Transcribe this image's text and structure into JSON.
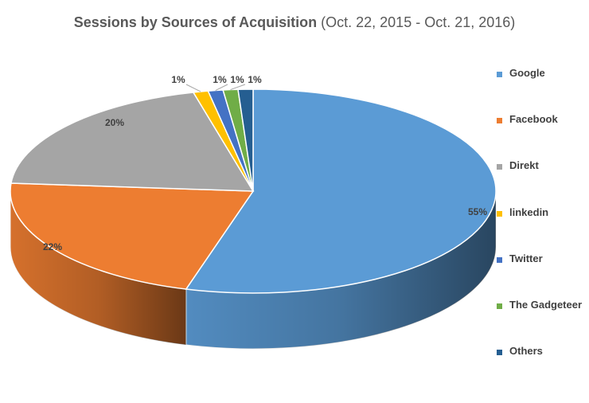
{
  "title": {
    "main": "Sessions by Sources of Acquisition",
    "sub": "(Oct. 22, 2015 - Oct. 21, 2016)"
  },
  "chart_data": {
    "type": "pie",
    "style": "3d",
    "categories": [
      "Google",
      "Facebook",
      "Direkt",
      "linkedin",
      "Twitter",
      "The Gadgeteer",
      "Others"
    ],
    "values": [
      55,
      22,
      20,
      1,
      1,
      1,
      1
    ],
    "labels": [
      "55%",
      "22%",
      "20%",
      "1%",
      "1%",
      "1%",
      "1%"
    ],
    "colors": [
      "#5B9BD5",
      "#ED7D31",
      "#A5A5A5",
      "#FFC000",
      "#4472C4",
      "#70AD47",
      "#255E91"
    ],
    "legend_position": "right"
  }
}
